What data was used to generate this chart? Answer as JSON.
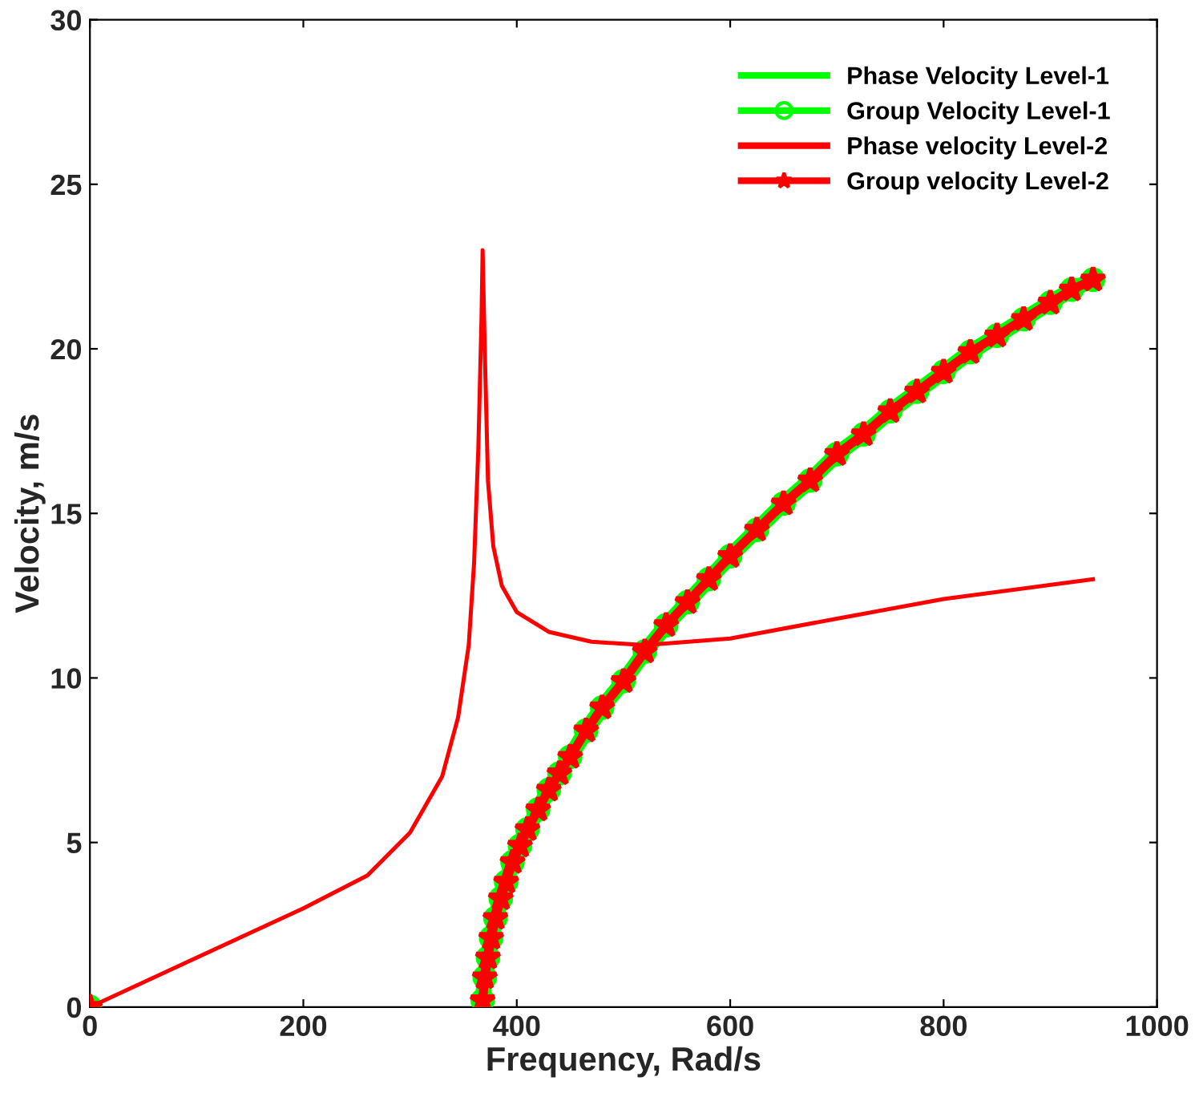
{
  "chart_data": {
    "type": "line",
    "xlabel": "Frequency, Rad/s",
    "ylabel": "Velocity, m/s",
    "xlim": [
      0,
      1000
    ],
    "ylim": [
      0,
      30
    ],
    "xticks": [
      0,
      200,
      400,
      600,
      800,
      1000
    ],
    "yticks": [
      0,
      5,
      10,
      15,
      20,
      25,
      30
    ],
    "grid": false,
    "legend": "top right",
    "series": [
      {
        "name": "Phase Velocity Level-1",
        "color": "#00ff00",
        "marker": "none"
      },
      {
        "name": "Group Velocity Level-1",
        "color": "#00ff00",
        "marker": "circle",
        "x": [
          0,
          200,
          368,
          370,
          373,
          376,
          380,
          385,
          390,
          396,
          403,
          410,
          420,
          430,
          440,
          450,
          465,
          480,
          500,
          520,
          540,
          560,
          580,
          600,
          625,
          650,
          675,
          700,
          725,
          750,
          775,
          800,
          825,
          850,
          875,
          900,
          920,
          940
        ],
        "values": [
          0,
          null,
          0.2,
          0.9,
          1.5,
          2.1,
          2.7,
          3.3,
          3.8,
          4.4,
          4.9,
          5.4,
          6.0,
          6.6,
          7.1,
          7.6,
          8.4,
          9.1,
          9.9,
          10.8,
          11.6,
          12.3,
          13.0,
          13.7,
          14.5,
          15.3,
          16.0,
          16.8,
          17.4,
          18.1,
          18.7,
          19.3,
          19.9,
          20.4,
          20.9,
          21.4,
          21.8,
          22.1
        ]
      },
      {
        "name": "Phase velocity Level-2",
        "color": "#ff0000",
        "marker": "none",
        "x": [
          0,
          100,
          200,
          260,
          300,
          330,
          345,
          355,
          360,
          364,
          367,
          368,
          370,
          373,
          378,
          386,
          400,
          430,
          470,
          520,
          600,
          700,
          800,
          940
        ],
        "values": [
          0,
          1.5,
          3.0,
          4.0,
          5.3,
          7.0,
          8.8,
          11,
          13.5,
          17,
          21,
          23,
          20,
          16,
          14,
          12.8,
          12,
          11.4,
          11.1,
          11.0,
          11.2,
          11.8,
          12.4,
          13.0
        ]
      },
      {
        "name": "Group velocity Level-2",
        "color": "#ff0000",
        "marker": "star",
        "x": [
          0,
          200,
          368,
          370,
          373,
          376,
          380,
          385,
          390,
          396,
          403,
          410,
          420,
          430,
          440,
          450,
          465,
          480,
          500,
          520,
          540,
          560,
          580,
          600,
          625,
          650,
          675,
          700,
          725,
          750,
          775,
          800,
          825,
          850,
          875,
          900,
          920,
          940
        ],
        "values": [
          0,
          null,
          0.2,
          0.9,
          1.5,
          2.1,
          2.7,
          3.3,
          3.8,
          4.4,
          4.9,
          5.4,
          6.0,
          6.6,
          7.1,
          7.6,
          8.4,
          9.1,
          9.9,
          10.8,
          11.6,
          12.3,
          13.0,
          13.7,
          14.5,
          15.3,
          16.0,
          16.8,
          17.4,
          18.1,
          18.7,
          19.3,
          19.9,
          20.4,
          20.9,
          21.4,
          21.8,
          22.1
        ]
      }
    ]
  }
}
